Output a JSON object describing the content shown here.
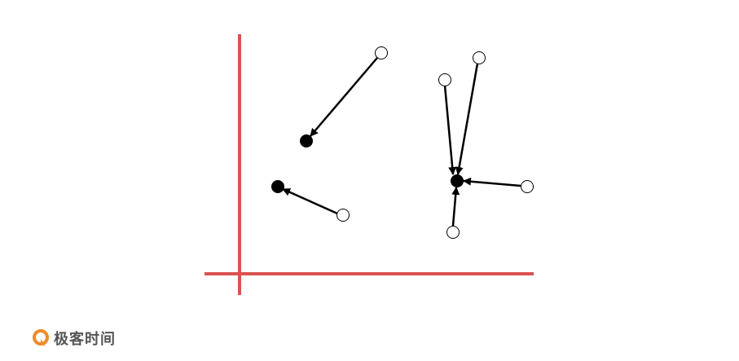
{
  "colors": {
    "axis": "#d9534f",
    "arrow": "#000000",
    "source_fill": "#ffffff",
    "target_fill": "#000000",
    "logo": "#f08a2a",
    "brand_text": "#555555"
  },
  "brand": {
    "text": "极客时间",
    "icon": "geektime-logo-icon"
  }
}
